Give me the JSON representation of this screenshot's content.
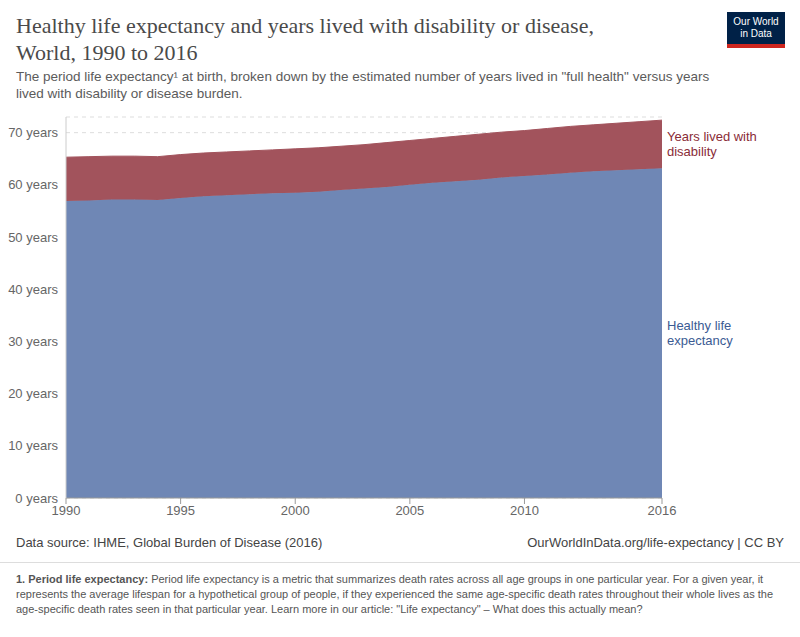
{
  "chart_data": {
    "type": "area",
    "stacked": true,
    "grid": true,
    "title": "Healthy life expectancy and years lived with disability or disease, World, 1990 to 2016",
    "subtitle": "The period life expectancy¹ at birth, broken down by the estimated number of years lived in \"full health\" versus years lived with disability or disease burden.",
    "logo": "Our World in Data",
    "source": "Data source: IHME, Global Burden of Disease (2016)",
    "credit": "OurWorldInData.org/life-expectancy | CC BY",
    "note_label": "1. Period life expectancy:",
    "note_text": "Period life expectancy is a metric that summarizes death rates across all age groups in one particular year. For a given year, it represents the average lifespan for a hypothetical group of people, if they experienced the same age-specific death rates throughout their whole lives as the age-specific death rates seen in that particular year. Learn more in our article: \"Life expectancy\" – What does this actually mean?",
    "x": [
      1990,
      1991,
      1992,
      1993,
      1994,
      1995,
      1996,
      1997,
      1998,
      1999,
      2000,
      2001,
      2002,
      2003,
      2004,
      2005,
      2006,
      2007,
      2008,
      2009,
      2010,
      2011,
      2012,
      2013,
      2014,
      2015,
      2016
    ],
    "xlim": [
      1990,
      2016
    ],
    "xticks": [
      1990,
      1995,
      2000,
      2005,
      2010,
      2016
    ],
    "ylim": [
      0,
      73
    ],
    "yticks": [
      {
        "value": 0,
        "label": "0 years"
      },
      {
        "value": 10,
        "label": "10 years"
      },
      {
        "value": 20,
        "label": "20 years"
      },
      {
        "value": 30,
        "label": "30 years"
      },
      {
        "value": 40,
        "label": "40 years"
      },
      {
        "value": 50,
        "label": "50 years"
      },
      {
        "value": 60,
        "label": "60 years"
      },
      {
        "value": 70,
        "label": "70 years"
      }
    ],
    "series": [
      {
        "name": "Healthy life expectancy",
        "color": "#6f87b5",
        "values": [
          56.9,
          57.0,
          57.2,
          57.2,
          57.1,
          57.5,
          57.8,
          58.0,
          58.2,
          58.4,
          58.5,
          58.7,
          59.0,
          59.3,
          59.6,
          60.0,
          60.4,
          60.7,
          61.0,
          61.4,
          61.7,
          62.0,
          62.3,
          62.6,
          62.8,
          63.0,
          63.2
        ]
      },
      {
        "name": "Years lived with disability",
        "color": "#a2535c",
        "values": [
          8.4,
          8.4,
          8.3,
          8.3,
          8.3,
          8.3,
          8.3,
          8.3,
          8.3,
          8.3,
          8.4,
          8.4,
          8.4,
          8.4,
          8.5,
          8.5,
          8.5,
          8.6,
          8.7,
          8.7,
          8.7,
          8.8,
          8.9,
          8.9,
          9.0,
          9.1,
          9.2
        ]
      }
    ]
  }
}
